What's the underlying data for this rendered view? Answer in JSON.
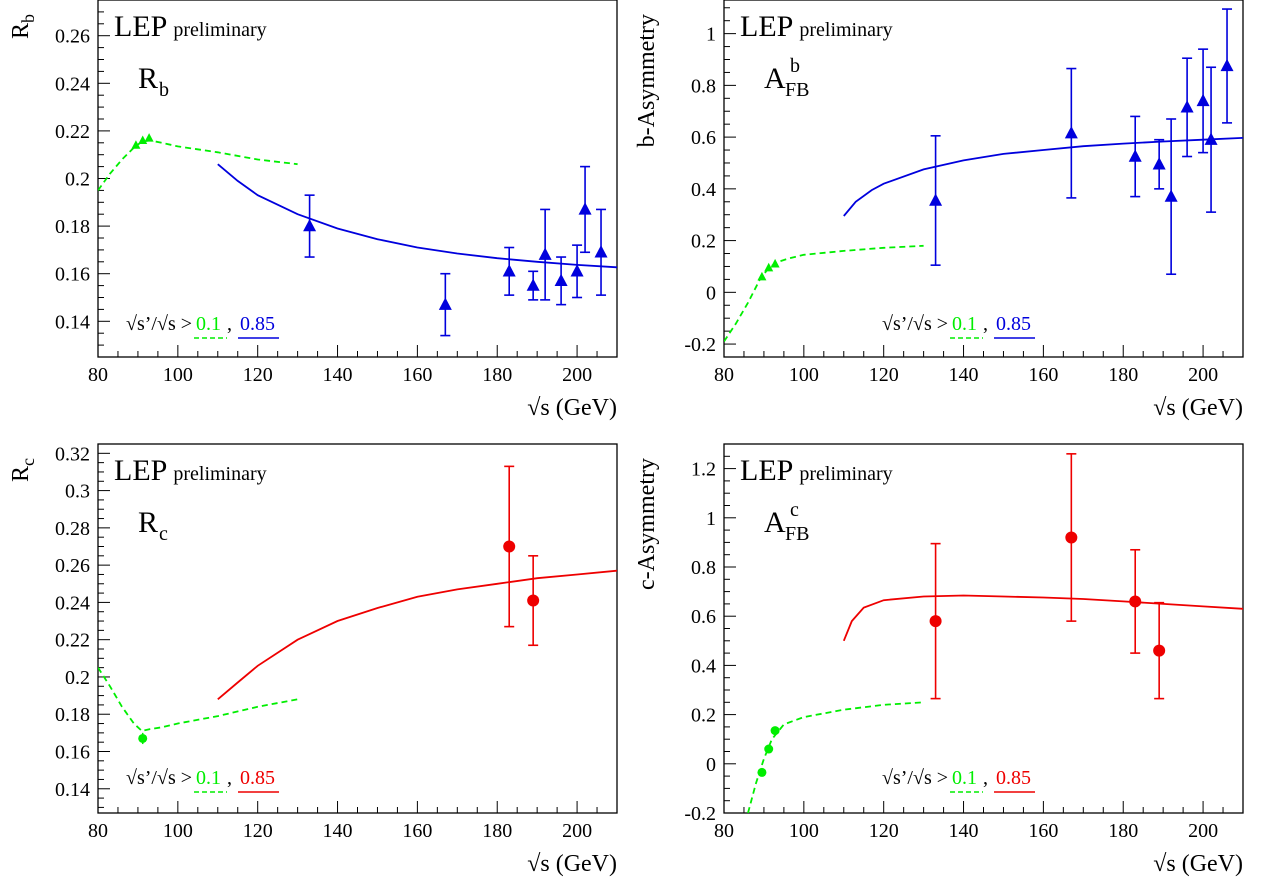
{
  "figure": {
    "xlabel": "√s  (GeV)",
    "lep_label": "LEP",
    "lep_sub": "preliminary",
    "cut_text": "√s’/√s >",
    "cut_low": "0.1",
    "cut_sep": ",",
    "cut_high": "0.85"
  },
  "colors": {
    "low": "#00ee00",
    "b": "#0000dd",
    "c": "#ee0000"
  },
  "chart_data": [
    {
      "type": "scatter",
      "name": "Rb",
      "ylabel": "R",
      "ylabel_sub": "b",
      "obs_main": "R",
      "obs_sub": "b",
      "obs_sup": "",
      "xlim": [
        80,
        210
      ],
      "ylim": [
        0.125,
        0.275
      ],
      "xticks": [
        80,
        100,
        120,
        140,
        160,
        180,
        200
      ],
      "yticks": [
        0.14,
        0.16,
        0.18,
        0.2,
        0.22,
        0.24,
        0.26
      ],
      "ytick_labels": [
        "0.14",
        "0.16",
        "0.18",
        "0.2",
        "0.22",
        "0.24",
        "0.26"
      ],
      "marker": "triangle",
      "series_color": "b",
      "low_points": [
        [
          89.5,
          0.214
        ],
        [
          91.2,
          0.216
        ],
        [
          92.8,
          0.217
        ]
      ],
      "high_points": [
        {
          "x": 133,
          "y": 0.18,
          "err": 0.013
        },
        {
          "x": 167,
          "y": 0.147,
          "err": 0.013
        },
        {
          "x": 183,
          "y": 0.161,
          "err": 0.01
        },
        {
          "x": 189,
          "y": 0.155,
          "err": 0.006
        },
        {
          "x": 192,
          "y": 0.168,
          "err": 0.019
        },
        {
          "x": 196,
          "y": 0.157,
          "err": 0.01
        },
        {
          "x": 200,
          "y": 0.161,
          "err": 0.011
        },
        {
          "x": 202,
          "y": 0.187,
          "err": 0.018
        },
        {
          "x": 206,
          "y": 0.169,
          "err": 0.018
        }
      ],
      "low_curve": [
        [
          80,
          0.195
        ],
        [
          83,
          0.202
        ],
        [
          86,
          0.208
        ],
        [
          89,
          0.213
        ],
        [
          91,
          0.2155
        ],
        [
          93,
          0.216
        ],
        [
          96,
          0.215
        ],
        [
          100,
          0.2135
        ],
        [
          110,
          0.211
        ],
        [
          120,
          0.208
        ],
        [
          130,
          0.206
        ]
      ],
      "high_curve": [
        [
          110,
          0.206
        ],
        [
          115,
          0.199
        ],
        [
          120,
          0.193
        ],
        [
          130,
          0.185
        ],
        [
          140,
          0.179
        ],
        [
          150,
          0.1745
        ],
        [
          160,
          0.171
        ],
        [
          170,
          0.1685
        ],
        [
          180,
          0.1665
        ],
        [
          190,
          0.165
        ],
        [
          200,
          0.1637
        ],
        [
          210,
          0.1627
        ]
      ]
    },
    {
      "type": "scatter",
      "name": "AFBb",
      "ylabel": "b-Asymmetry",
      "ylabel_sub": "",
      "obs_main": "A",
      "obs_sub": "FB",
      "obs_sup": "b",
      "xlim": [
        80,
        210
      ],
      "ylim": [
        -0.25,
        1.13
      ],
      "xticks": [
        80,
        100,
        120,
        140,
        160,
        180,
        200
      ],
      "yticks": [
        -0.2,
        0,
        0.2,
        0.4,
        0.6,
        0.8,
        1
      ],
      "ytick_labels": [
        "-0.2",
        "0",
        "0.2",
        "0.4",
        "0.6",
        "0.8",
        "1"
      ],
      "marker": "triangle",
      "series_color": "b",
      "low_points": [
        [
          89.5,
          0.06
        ],
        [
          91.2,
          0.095
        ],
        [
          92.8,
          0.11
        ]
      ],
      "high_points": [
        {
          "x": 133,
          "y": 0.355,
          "err": 0.25
        },
        {
          "x": 167,
          "y": 0.615,
          "err": 0.25
        },
        {
          "x": 183,
          "y": 0.525,
          "err": 0.155
        },
        {
          "x": 189,
          "y": 0.495,
          "err": 0.095
        },
        {
          "x": 192,
          "y": 0.37,
          "err": 0.3
        },
        {
          "x": 196,
          "y": 0.715,
          "err": 0.19
        },
        {
          "x": 200,
          "y": 0.74,
          "err": 0.2
        },
        {
          "x": 202,
          "y": 0.59,
          "err": 0.28
        },
        {
          "x": 206,
          "y": 0.875,
          "err": 0.22
        }
      ],
      "low_curve": [
        [
          80,
          -0.19
        ],
        [
          83,
          -0.12
        ],
        [
          86,
          -0.04
        ],
        [
          89,
          0.05
        ],
        [
          91,
          0.09
        ],
        [
          93,
          0.115
        ],
        [
          96,
          0.13
        ],
        [
          100,
          0.145
        ],
        [
          110,
          0.16
        ],
        [
          120,
          0.172
        ],
        [
          130,
          0.18
        ]
      ],
      "high_curve": [
        [
          110,
          0.295
        ],
        [
          113,
          0.35
        ],
        [
          117,
          0.395
        ],
        [
          120,
          0.42
        ],
        [
          130,
          0.475
        ],
        [
          140,
          0.51
        ],
        [
          150,
          0.535
        ],
        [
          160,
          0.55
        ],
        [
          170,
          0.565
        ],
        [
          180,
          0.575
        ],
        [
          190,
          0.583
        ],
        [
          200,
          0.59
        ],
        [
          210,
          0.597
        ]
      ]
    },
    {
      "type": "scatter",
      "name": "Rc",
      "ylabel": "R",
      "ylabel_sub": "c",
      "obs_main": "R",
      "obs_sub": "c",
      "obs_sup": "",
      "xlim": [
        80,
        210
      ],
      "ylim": [
        0.127,
        0.325
      ],
      "xticks": [
        80,
        100,
        120,
        140,
        160,
        180,
        200
      ],
      "yticks": [
        0.14,
        0.16,
        0.18,
        0.2,
        0.22,
        0.24,
        0.26,
        0.28,
        0.3,
        0.32
      ],
      "ytick_labels": [
        "0.14",
        "0.16",
        "0.18",
        "0.2",
        "0.22",
        "0.24",
        "0.26",
        "0.28",
        "0.3",
        "0.32"
      ],
      "marker": "circle",
      "series_color": "c",
      "low_points": [
        [
          91.2,
          0.167
        ]
      ],
      "low_err": [
        0.003
      ],
      "high_points": [
        {
          "x": 183,
          "y": 0.27,
          "err": 0.043
        },
        {
          "x": 189,
          "y": 0.241,
          "err": 0.024
        }
      ],
      "low_curve": [
        [
          80,
          0.205
        ],
        [
          83,
          0.195
        ],
        [
          86,
          0.184
        ],
        [
          89,
          0.175
        ],
        [
          91,
          0.171
        ],
        [
          93,
          0.172
        ],
        [
          96,
          0.173
        ],
        [
          100,
          0.175
        ],
        [
          110,
          0.179
        ],
        [
          120,
          0.184
        ],
        [
          130,
          0.188
        ]
      ],
      "high_curve": [
        [
          110,
          0.188
        ],
        [
          115,
          0.197
        ],
        [
          120,
          0.206
        ],
        [
          130,
          0.22
        ],
        [
          140,
          0.23
        ],
        [
          150,
          0.237
        ],
        [
          160,
          0.243
        ],
        [
          170,
          0.247
        ],
        [
          180,
          0.25
        ],
        [
          190,
          0.253
        ],
        [
          200,
          0.255
        ],
        [
          210,
          0.257
        ]
      ]
    },
    {
      "type": "scatter",
      "name": "AFBc",
      "ylabel": "c-Asymmetry",
      "ylabel_sub": "",
      "obs_main": "A",
      "obs_sub": "FB",
      "obs_sup": "c",
      "xlim": [
        80,
        210
      ],
      "ylim": [
        -0.2,
        1.3
      ],
      "xticks": [
        80,
        100,
        120,
        140,
        160,
        180,
        200
      ],
      "yticks": [
        -0.2,
        0,
        0.2,
        0.4,
        0.6,
        0.8,
        1,
        1.2
      ],
      "ytick_labels": [
        "-0.2",
        "0",
        "0.2",
        "0.4",
        "0.6",
        "0.8",
        "1",
        "1.2"
      ],
      "marker": "circle",
      "series_color": "c",
      "low_points": [
        [
          89.5,
          -0.035
        ],
        [
          91.2,
          0.06
        ],
        [
          92.8,
          0.135
        ]
      ],
      "high_points": [
        {
          "x": 133,
          "y": 0.58,
          "err": 0.315
        },
        {
          "x": 167,
          "y": 0.92,
          "err": 0.34
        },
        {
          "x": 183,
          "y": 0.66,
          "err": 0.21
        },
        {
          "x": 189,
          "y": 0.46,
          "err": 0.195
        }
      ],
      "low_curve": [
        [
          86,
          -0.2
        ],
        [
          88,
          -0.08
        ],
        [
          90,
          0.02
        ],
        [
          92,
          0.1
        ],
        [
          95,
          0.16
        ],
        [
          100,
          0.19
        ],
        [
          110,
          0.22
        ],
        [
          120,
          0.24
        ],
        [
          130,
          0.25
        ]
      ],
      "high_curve": [
        [
          110,
          0.5
        ],
        [
          112,
          0.58
        ],
        [
          115,
          0.635
        ],
        [
          120,
          0.665
        ],
        [
          130,
          0.68
        ],
        [
          140,
          0.684
        ],
        [
          150,
          0.68
        ],
        [
          160,
          0.676
        ],
        [
          170,
          0.67
        ],
        [
          180,
          0.66
        ],
        [
          190,
          0.65
        ],
        [
          200,
          0.64
        ],
        [
          210,
          0.63
        ]
      ]
    }
  ]
}
